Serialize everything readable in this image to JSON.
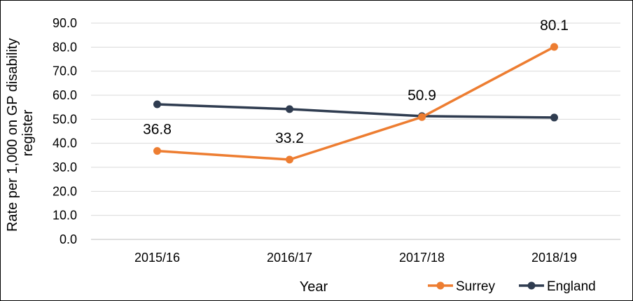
{
  "chart_data": {
    "type": "line",
    "title": "",
    "xlabel": "Year",
    "ylabel": "Rate per 1,000 on GP disability register",
    "categories": [
      "2015/16",
      "2016/17",
      "2017/18",
      "2018/19"
    ],
    "ylim": [
      0,
      90
    ],
    "yticks": [
      "0.0",
      "10.0",
      "20.0",
      "30.0",
      "40.0",
      "50.0",
      "60.0",
      "70.0",
      "80.0",
      "90.0"
    ],
    "grid": "horizontal",
    "legend_position": "bottom-right",
    "series": [
      {
        "name": "Surrey",
        "color": "#ED7D31",
        "values": [
          36.8,
          33.2,
          50.9,
          80.1
        ],
        "data_labels": [
          "36.8",
          "33.2",
          "50.9",
          "80.1"
        ]
      },
      {
        "name": "England",
        "color": "#2F3C50",
        "values": [
          56.2,
          54.2,
          51.3,
          50.7
        ]
      }
    ]
  }
}
